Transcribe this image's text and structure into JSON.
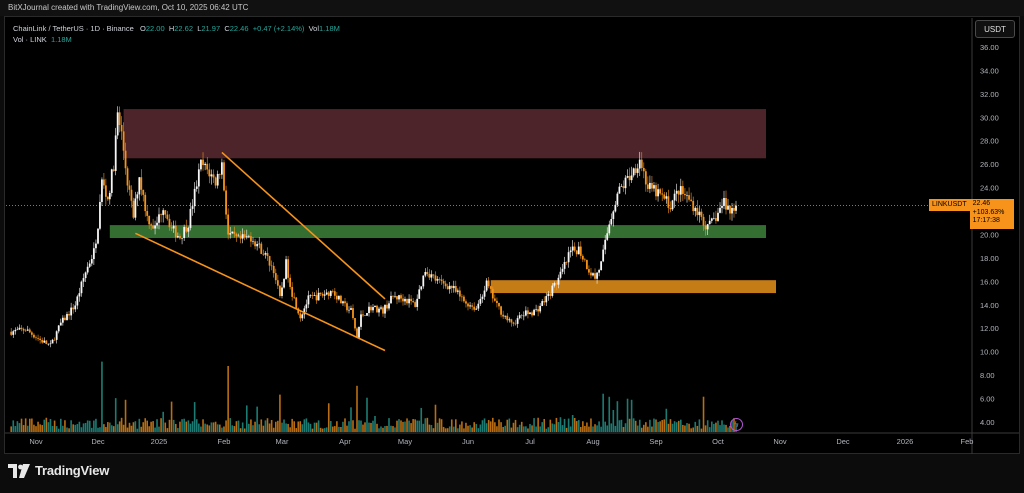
{
  "header": {
    "attribution": "BitXJournal created with TradingView.com, Oct 10, 2025 06:42 UTC"
  },
  "legend": {
    "symbol": "ChainLink / TetherUS · 1D · Binance",
    "o_label": "O",
    "o": "22.00",
    "h_label": "H",
    "h": "22.62",
    "l_label": "L",
    "l": "21.97",
    "c_label": "C",
    "c": "22.46",
    "change": "+0.47 (+2.14%)",
    "vol_label": "Vol",
    "vol": "1.18M",
    "vol_line_label": "Vol · LINK",
    "vol_line_value": "1.18M"
  },
  "currency_button": "USDT",
  "price_tag": {
    "symbol": "LINKUSDT",
    "price": "22.46",
    "change_pct": "+103.63%",
    "countdown": "17:17:38"
  },
  "brand": "TradingView",
  "colors": {
    "up": "#f7f7f7",
    "down": "#f7931a",
    "volume_up": "#26a69a",
    "volume_down": "#f7931a",
    "resistance_zone": "#5a2a30",
    "support_zone": "#3a7a35",
    "demand_zone": "#d98a1a",
    "wedge": "#f7931a"
  },
  "chart_data": {
    "type": "candlestick",
    "y_axis": {
      "ticks": [
        "4.00",
        "6.00",
        "8.00",
        "10.00",
        "12.00",
        "14.00",
        "16.00",
        "18.00",
        "20.00",
        "22.00",
        "24.00",
        "26.00",
        "28.00",
        "30.00",
        "32.00",
        "34.00",
        "36.00"
      ],
      "ylim": [
        3.0,
        37.3
      ]
    },
    "x_axis": {
      "ticks": [
        "Nov",
        "Dec",
        "2025",
        "Feb",
        "Mar",
        "Apr",
        "May",
        "Jun",
        "Jul",
        "Aug",
        "Sep",
        "Oct",
        "Nov",
        "Dec",
        "2026",
        "Feb"
      ]
    },
    "price_path": [
      [
        "2024-10-20",
        11.7
      ],
      [
        "2024-10-27",
        11.9
      ],
      [
        "2024-11-03",
        11.0
      ],
      [
        "2024-11-08",
        10.5
      ],
      [
        "2024-11-13",
        12.4
      ],
      [
        "2024-11-20",
        14.0
      ],
      [
        "2024-11-25",
        16.8
      ],
      [
        "2024-11-30",
        19.0
      ],
      [
        "2024-12-03",
        24.5
      ],
      [
        "2024-12-06",
        23.0
      ],
      [
        "2024-12-09",
        26.0
      ],
      [
        "2024-12-11",
        30.2
      ],
      [
        "2024-12-13",
        28.5
      ],
      [
        "2024-12-16",
        24.5
      ],
      [
        "2024-12-19",
        21.5
      ],
      [
        "2024-12-22",
        25.0
      ],
      [
        "2024-12-26",
        21.5
      ],
      [
        "2024-12-30",
        20.5
      ],
      [
        "2025-01-03",
        22.5
      ],
      [
        "2025-01-07",
        20.5
      ],
      [
        "2025-01-11",
        19.8
      ],
      [
        "2025-01-15",
        21.0
      ],
      [
        "2025-01-18",
        23.5
      ],
      [
        "2025-01-21",
        26.0
      ],
      [
        "2025-01-24",
        25.5
      ],
      [
        "2025-01-28",
        24.5
      ],
      [
        "2025-01-31",
        26.0
      ],
      [
        "2025-02-03",
        20.0
      ],
      [
        "2025-02-08",
        19.5
      ],
      [
        "2025-02-14",
        19.8
      ],
      [
        "2025-02-20",
        18.5
      ],
      [
        "2025-02-25",
        17.0
      ],
      [
        "2025-02-28",
        14.5
      ],
      [
        "2025-03-03",
        17.5
      ],
      [
        "2025-03-06",
        15.0
      ],
      [
        "2025-03-10",
        13.0
      ],
      [
        "2025-03-14",
        14.5
      ],
      [
        "2025-03-20",
        14.8
      ],
      [
        "2025-03-26",
        15.2
      ],
      [
        "2025-03-31",
        14.0
      ],
      [
        "2025-04-04",
        13.5
      ],
      [
        "2025-04-07",
        11.2
      ],
      [
        "2025-04-09",
        13.0
      ],
      [
        "2025-04-14",
        13.8
      ],
      [
        "2025-04-20",
        13.5
      ],
      [
        "2025-04-25",
        14.7
      ],
      [
        "2025-05-01",
        14.5
      ],
      [
        "2025-05-06",
        14.0
      ],
      [
        "2025-05-11",
        17.0
      ],
      [
        "2025-05-17",
        16.0
      ],
      [
        "2025-05-24",
        15.5
      ],
      [
        "2025-05-30",
        14.3
      ],
      [
        "2025-06-05",
        13.7
      ],
      [
        "2025-06-10",
        15.8
      ],
      [
        "2025-06-15",
        13.9
      ],
      [
        "2025-06-22",
        12.3
      ],
      [
        "2025-06-28",
        13.2
      ],
      [
        "2025-07-04",
        13.5
      ],
      [
        "2025-07-10",
        14.8
      ],
      [
        "2025-07-16",
        16.5
      ],
      [
        "2025-07-21",
        18.5
      ],
      [
        "2025-07-25",
        18.8
      ],
      [
        "2025-07-30",
        17.0
      ],
      [
        "2025-08-02",
        16.3
      ],
      [
        "2025-08-05",
        17.5
      ],
      [
        "2025-08-09",
        21.0
      ],
      [
        "2025-08-13",
        23.5
      ],
      [
        "2025-08-17",
        24.5
      ],
      [
        "2025-08-21",
        25.5
      ],
      [
        "2025-08-24",
        26.5
      ],
      [
        "2025-08-28",
        24.0
      ],
      [
        "2025-09-02",
        23.5
      ],
      [
        "2025-09-08",
        22.5
      ],
      [
        "2025-09-12",
        23.8
      ],
      [
        "2025-09-17",
        23.0
      ],
      [
        "2025-09-21",
        22.0
      ],
      [
        "2025-09-26",
        20.5
      ],
      [
        "2025-09-30",
        21.5
      ],
      [
        "2025-10-04",
        22.8
      ],
      [
        "2025-10-07",
        22.0
      ],
      [
        "2025-10-10",
        22.46
      ]
    ],
    "zones": [
      {
        "name": "resistance",
        "from": "2024-12-14",
        "to": "2025-10-25",
        "low": 26.5,
        "high": 30.7
      },
      {
        "name": "support",
        "from": "2024-12-07",
        "to": "2025-10-25",
        "low": 19.7,
        "high": 20.8
      },
      {
        "name": "demand",
        "from": "2025-06-12",
        "to": "2025-10-30",
        "low": 15.0,
        "high": 16.1
      }
    ],
    "trendlines": [
      {
        "from": [
          "2025-01-31",
          27.0
        ],
        "to": [
          "2025-04-21",
          14.5
        ]
      },
      {
        "from": [
          "2024-12-20",
          20.1
        ],
        "to": [
          "2025-04-21",
          10.1
        ]
      }
    ],
    "last_price": 22.46
  }
}
